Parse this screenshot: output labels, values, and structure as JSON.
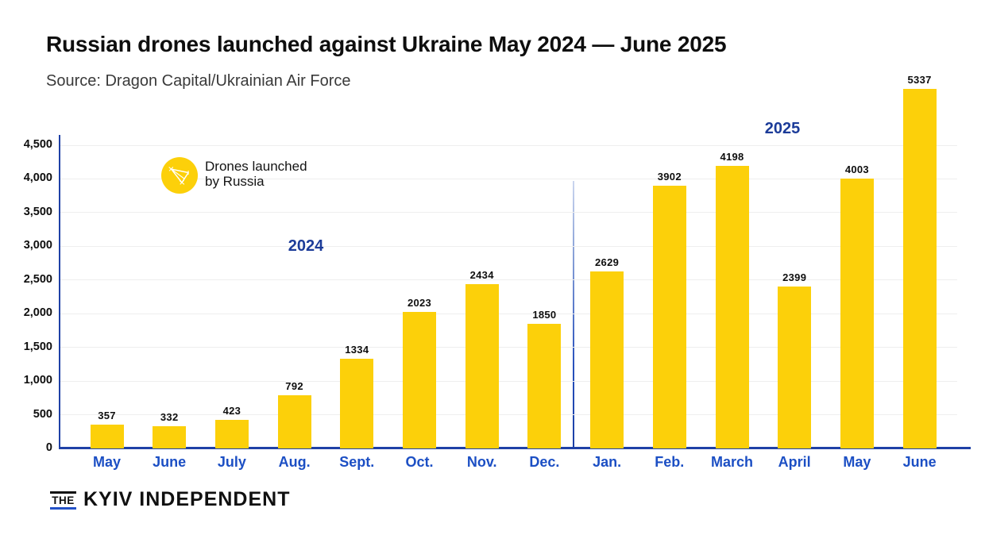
{
  "header": {
    "title": "Russian drones launched against Ukraine May 2024 — June 2025",
    "source": "Source: Dragon Capital/Ukrainian Air Force"
  },
  "legend": {
    "icon": "drone-icon",
    "line1": "Drones launched",
    "line2": "by Russia"
  },
  "chart_data": {
    "type": "bar",
    "title": "Russian drones launched against Ukraine May 2024 — June 2025",
    "categories": [
      "May",
      "June",
      "July",
      "Aug.",
      "Sept.",
      "Oct.",
      "Nov.",
      "Dec.",
      "Jan.",
      "Feb.",
      "March",
      "April",
      "May",
      "June"
    ],
    "values": [
      357,
      332,
      423,
      792,
      1334,
      2023,
      2434,
      1850,
      2629,
      3902,
      4198,
      2399,
      4003,
      5337
    ],
    "year_labels": [
      "2024",
      "2025"
    ],
    "year_split_after_index": 7,
    "ylim": [
      0,
      4500
    ],
    "yticks": [
      0,
      500,
      1000,
      1500,
      2000,
      2500,
      3000,
      3500,
      4000,
      4500
    ],
    "ytick_labels": [
      "0",
      "500",
      "1,000",
      "1,500",
      "2,000",
      "2,500",
      "3,000",
      "3,500",
      "4,000",
      "4,500"
    ],
    "grid": true,
    "legend_position": "upper-left",
    "legend_entry": "Drones launched by Russia",
    "xlabel": "",
    "ylabel": ""
  },
  "colors": {
    "bar": "#FCD00A",
    "axis": "#1F41A6",
    "month_label": "#1C4FC4",
    "year_label": "#1C3C99",
    "gridline": "#EEEEEE",
    "value_label": "#0E0E0E",
    "source_text": "#3A3A3A",
    "logo_underline": "#2452C8"
  },
  "footer": {
    "logo_the": "THE",
    "logo_name": "KYIV INDEPENDENT"
  }
}
